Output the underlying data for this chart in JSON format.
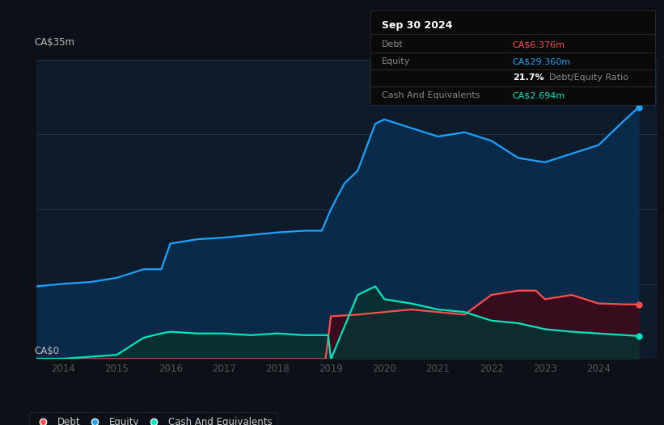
{
  "bg_color": "#0d1117",
  "plot_bg_color": "#0d1b2a",
  "title_label": "CA$35m",
  "zero_label": "CA$0",
  "xlabel_ticks": [
    "2014",
    "2015",
    "2016",
    "2017",
    "2018",
    "2019",
    "2020",
    "2021",
    "2022",
    "2023",
    "2024"
  ],
  "ylim": [
    0,
    35
  ],
  "xlim": [
    2013.5,
    2025.1
  ],
  "equity_color": "#1aa3ff",
  "debt_color": "#ff4d4d",
  "cash_color": "#00e5c0",
  "equity_fill_color": "#0a2a4a",
  "debt_fill_color": "#3d0a1a",
  "cash_fill_color": "#0a3030",
  "info_box": {
    "date": "Sep 30 2024",
    "debt_label": "Debt",
    "debt_value": "CA$6.376m",
    "equity_label": "Equity",
    "equity_value": "CA$29.360m",
    "ratio": "21.7%",
    "ratio_label": "Debt/Equity Ratio",
    "cash_label": "Cash And Equivalents",
    "cash_value": "CA$2.694m"
  },
  "legend_items": [
    "Debt",
    "Equity",
    "Cash And Equivalents"
  ],
  "equity_x": [
    2013.5,
    2014.0,
    2014.5,
    2015.0,
    2015.5,
    2015.83,
    2016.0,
    2016.5,
    2017.0,
    2017.5,
    2018.0,
    2018.5,
    2018.83,
    2019.0,
    2019.25,
    2019.5,
    2019.83,
    2020.0,
    2020.5,
    2021.0,
    2021.5,
    2022.0,
    2022.5,
    2023.0,
    2023.5,
    2024.0,
    2024.5,
    2024.75
  ],
  "equity_y": [
    8.5,
    8.8,
    9.0,
    9.5,
    10.5,
    10.5,
    13.5,
    14.0,
    14.2,
    14.5,
    14.8,
    15.0,
    15.0,
    17.5,
    20.5,
    22.0,
    27.5,
    28.0,
    27.0,
    26.0,
    26.5,
    25.5,
    23.5,
    23.0,
    24.0,
    25.0,
    28.0,
    29.4
  ],
  "debt_x": [
    2013.5,
    2014.0,
    2015.0,
    2016.0,
    2017.0,
    2018.0,
    2018.83,
    2018.9,
    2019.0,
    2019.5,
    2020.0,
    2020.5,
    2021.0,
    2021.5,
    2022.0,
    2022.5,
    2022.83,
    2023.0,
    2023.5,
    2024.0,
    2024.5,
    2024.75
  ],
  "debt_y": [
    0.0,
    0.0,
    0.0,
    0.0,
    0.0,
    0.0,
    0.0,
    0.0,
    5.0,
    5.2,
    5.5,
    5.8,
    5.5,
    5.2,
    7.5,
    8.0,
    8.0,
    7.0,
    7.5,
    6.5,
    6.4,
    6.4
  ],
  "cash_x": [
    2013.5,
    2014.0,
    2015.0,
    2015.5,
    2015.83,
    2016.0,
    2016.5,
    2017.0,
    2017.5,
    2018.0,
    2018.5,
    2018.83,
    2018.95,
    2019.0,
    2019.5,
    2019.83,
    2020.0,
    2020.5,
    2021.0,
    2021.5,
    2022.0,
    2022.5,
    2023.0,
    2023.5,
    2024.0,
    2024.5,
    2024.75
  ],
  "cash_y": [
    0.05,
    0.05,
    0.5,
    2.5,
    3.0,
    3.2,
    3.0,
    3.0,
    2.8,
    3.0,
    2.8,
    2.8,
    2.8,
    0.0,
    7.5,
    8.5,
    7.0,
    6.5,
    5.8,
    5.5,
    4.5,
    4.2,
    3.5,
    3.2,
    3.0,
    2.8,
    2.7
  ],
  "hgrid_y": [
    0,
    8.75,
    17.5,
    26.25,
    35
  ]
}
